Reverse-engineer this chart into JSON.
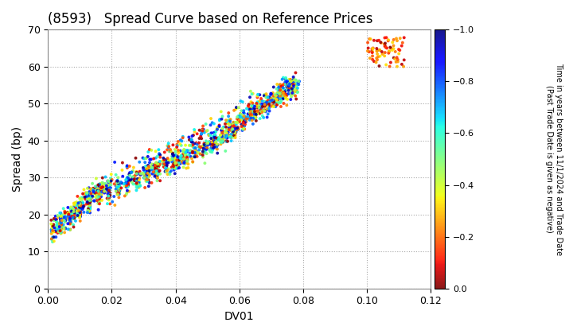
{
  "title": "(8593)   Spread Curve based on Reference Prices",
  "xlabel": "DV01",
  "ylabel": "Spread (bp)",
  "xlim": [
    0.0,
    0.12
  ],
  "ylim": [
    0,
    70
  ],
  "xticks": [
    0.0,
    0.02,
    0.04,
    0.06,
    0.08,
    0.1,
    0.12
  ],
  "yticks": [
    0,
    10,
    20,
    30,
    40,
    50,
    60,
    70
  ],
  "colorbar_label": "Time in years between 11/1/2024 and Trade Date\n(Past Trade Date is given as negative)",
  "clim": [
    -1.0,
    0.0
  ],
  "colorbar_ticks": [
    0.0,
    -0.2,
    -0.4,
    -0.6,
    -0.8,
    -1.0
  ],
  "background_color": "#ffffff",
  "grid_color": "#aaaaaa",
  "title_fontsize": 12,
  "axis_fontsize": 10,
  "colormap": "jet"
}
